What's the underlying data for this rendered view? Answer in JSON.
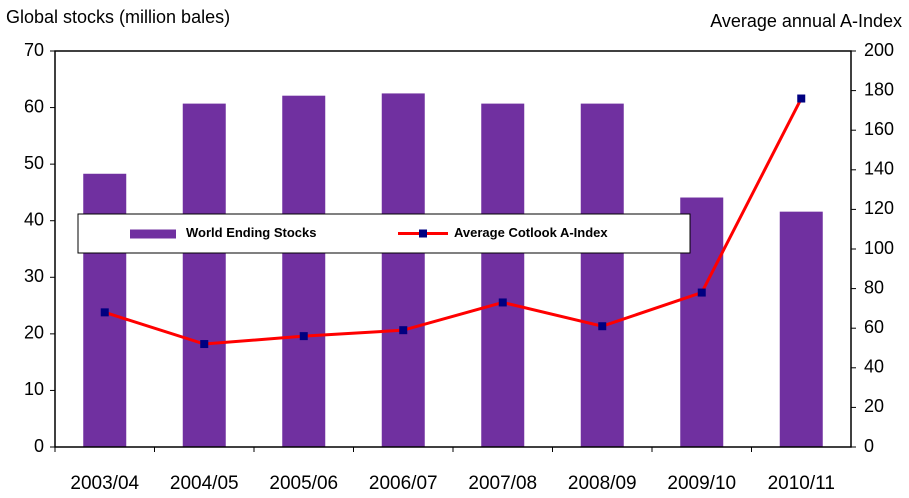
{
  "chart_data": {
    "type": "bar",
    "y_label": "Global stocks (million bales)",
    "y2_label": "Average annual A-Index",
    "categories": [
      "2003/04",
      "2004/05",
      "2005/06",
      "2006/07",
      "2007/08",
      "2008/09",
      "2009/10",
      "2010/11"
    ],
    "series": [
      {
        "name": "World Ending Stocks",
        "type": "bar",
        "color": "#7030a0",
        "values": [
          48.3,
          60.7,
          62.1,
          62.5,
          60.7,
          60.7,
          44.1,
          41.6
        ]
      },
      {
        "name": "Average Cotlook A-Index",
        "type": "line",
        "axis": "y2",
        "color": "#ff0000",
        "marker_color": "#000080",
        "values": [
          68,
          52,
          56,
          59,
          73,
          61,
          78,
          176
        ]
      }
    ],
    "ylim": [
      0,
      70
    ],
    "yticks": [
      0,
      10,
      20,
      30,
      40,
      50,
      60,
      70
    ],
    "y2lim": [
      0,
      200
    ],
    "y2ticks": [
      0,
      20,
      40,
      60,
      80,
      100,
      120,
      140,
      160,
      180,
      200
    ],
    "legend": "center",
    "grid": false
  }
}
